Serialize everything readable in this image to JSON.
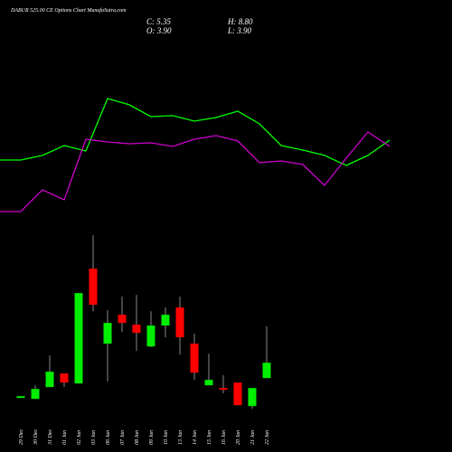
{
  "header": {
    "title": "DABUR 525.00  CE Options Chart MunafaSutra.com",
    "close": "C: 5.35",
    "high": "H: 8.80",
    "open": "O: 3.90",
    "low": "L: 3.90"
  },
  "chart_data": [
    {
      "type": "line",
      "ylim": [
        0,
        100
      ],
      "series": [
        {
          "color": "#00ff00",
          "values": [
            45.6,
            45.6,
            48.8,
            55.6,
            51.9,
            88.1,
            83.8,
            75.6,
            76.3,
            72.5,
            75,
            79.4,
            70.6,
            55.6,
            52.5,
            48.8,
            41.9,
            48.8,
            59.4
          ]
        },
        {
          "color": "#cc00cc",
          "values": [
            10,
            10,
            25,
            18.1,
            60,
            58.1,
            56.9,
            57.5,
            55,
            60,
            62.5,
            58.8,
            43.8,
            45,
            42.5,
            28.1,
            46.9,
            65,
            55
          ]
        }
      ]
    },
    {
      "type": "candlestick",
      "ylim": [
        0.5,
        17.5
      ],
      "up_color": "#00ee00",
      "down_color": "#ff0000",
      "categories": [
        "29 Dec",
        "30 Dec",
        "31 Dec",
        "01 Jan",
        "02 Jan",
        "03 Jan",
        "06 Jan",
        "07 Jan",
        "08 Jan",
        "09 Jan",
        "10 Jan",
        "13 Jan",
        "14 Jan",
        "15 Jan",
        "16 Jan",
        "20 Jan",
        "21 Jan",
        "22 Jan"
      ],
      "open": [
        2.02,
        1.93,
        3.05,
        4.33,
        3.39,
        14.24,
        7.15,
        9.88,
        8.94,
        6.89,
        8.86,
        10.57,
        7.15,
        3.22,
        2.96,
        3.47,
        1.25,
        3.9
      ],
      "close": [
        2.19,
        2.87,
        4.5,
        3.47,
        11.93,
        10.82,
        9.11,
        9.11,
        8.17,
        8.86,
        9.88,
        7.75,
        4.41,
        3.73,
        2.79,
        1.34,
        2.96,
        5.35
      ],
      "high": [
        2.19,
        3.22,
        6.04,
        4.33,
        11.93,
        17.4,
        10.31,
        11.59,
        11.76,
        10.22,
        10.57,
        11.59,
        8.09,
        6.21,
        4.16,
        3.47,
        2.96,
        8.8
      ],
      "low": [
        2.02,
        1.93,
        3.05,
        3.05,
        3.39,
        10.22,
        3.56,
        8.26,
        6.46,
        6.81,
        7.75,
        6.12,
        3.73,
        3.22,
        2.45,
        1.34,
        0.99,
        3.9
      ]
    }
  ]
}
